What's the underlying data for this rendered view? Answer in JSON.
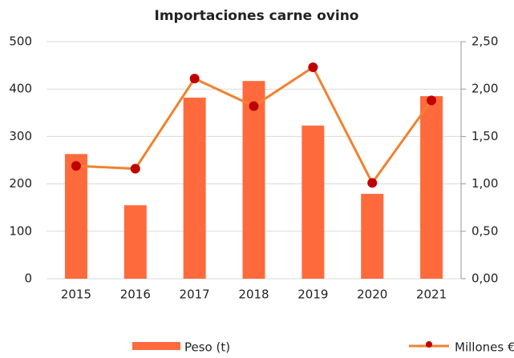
{
  "chart_data": {
    "type": "bar_line",
    "title": "Importaciones carne ovino",
    "categories": [
      "2015",
      "2016",
      "2017",
      "2018",
      "2019",
      "2020",
      "2021"
    ],
    "series": [
      {
        "name": "Peso (t)",
        "type": "bar",
        "color": "#ff6a3d",
        "values": [
          263,
          155,
          382,
          417,
          323,
          179,
          385
        ]
      },
      {
        "name": "Millones €",
        "type": "line",
        "axis": "y2",
        "color": "#f0822f",
        "marker_color": "#c00000",
        "values": [
          1.19,
          1.16,
          2.11,
          1.82,
          2.23,
          1.01,
          1.88
        ]
      }
    ],
    "ylim": [
      0,
      500
    ],
    "yticks": [
      0,
      100,
      200,
      300,
      400,
      500
    ],
    "y2lim": [
      0,
      2.5
    ],
    "y2ticks": [
      {
        "value": 0,
        "label": "0,00"
      },
      {
        "value": 0.5,
        "label": "0,50"
      },
      {
        "value": 1,
        "label": "1,00"
      },
      {
        "value": 1.5,
        "label": "1,50"
      },
      {
        "value": 2,
        "label": "2,00"
      },
      {
        "value": 2.5,
        "label": "2,50"
      }
    ],
    "grid": true,
    "legend": "bottom"
  }
}
